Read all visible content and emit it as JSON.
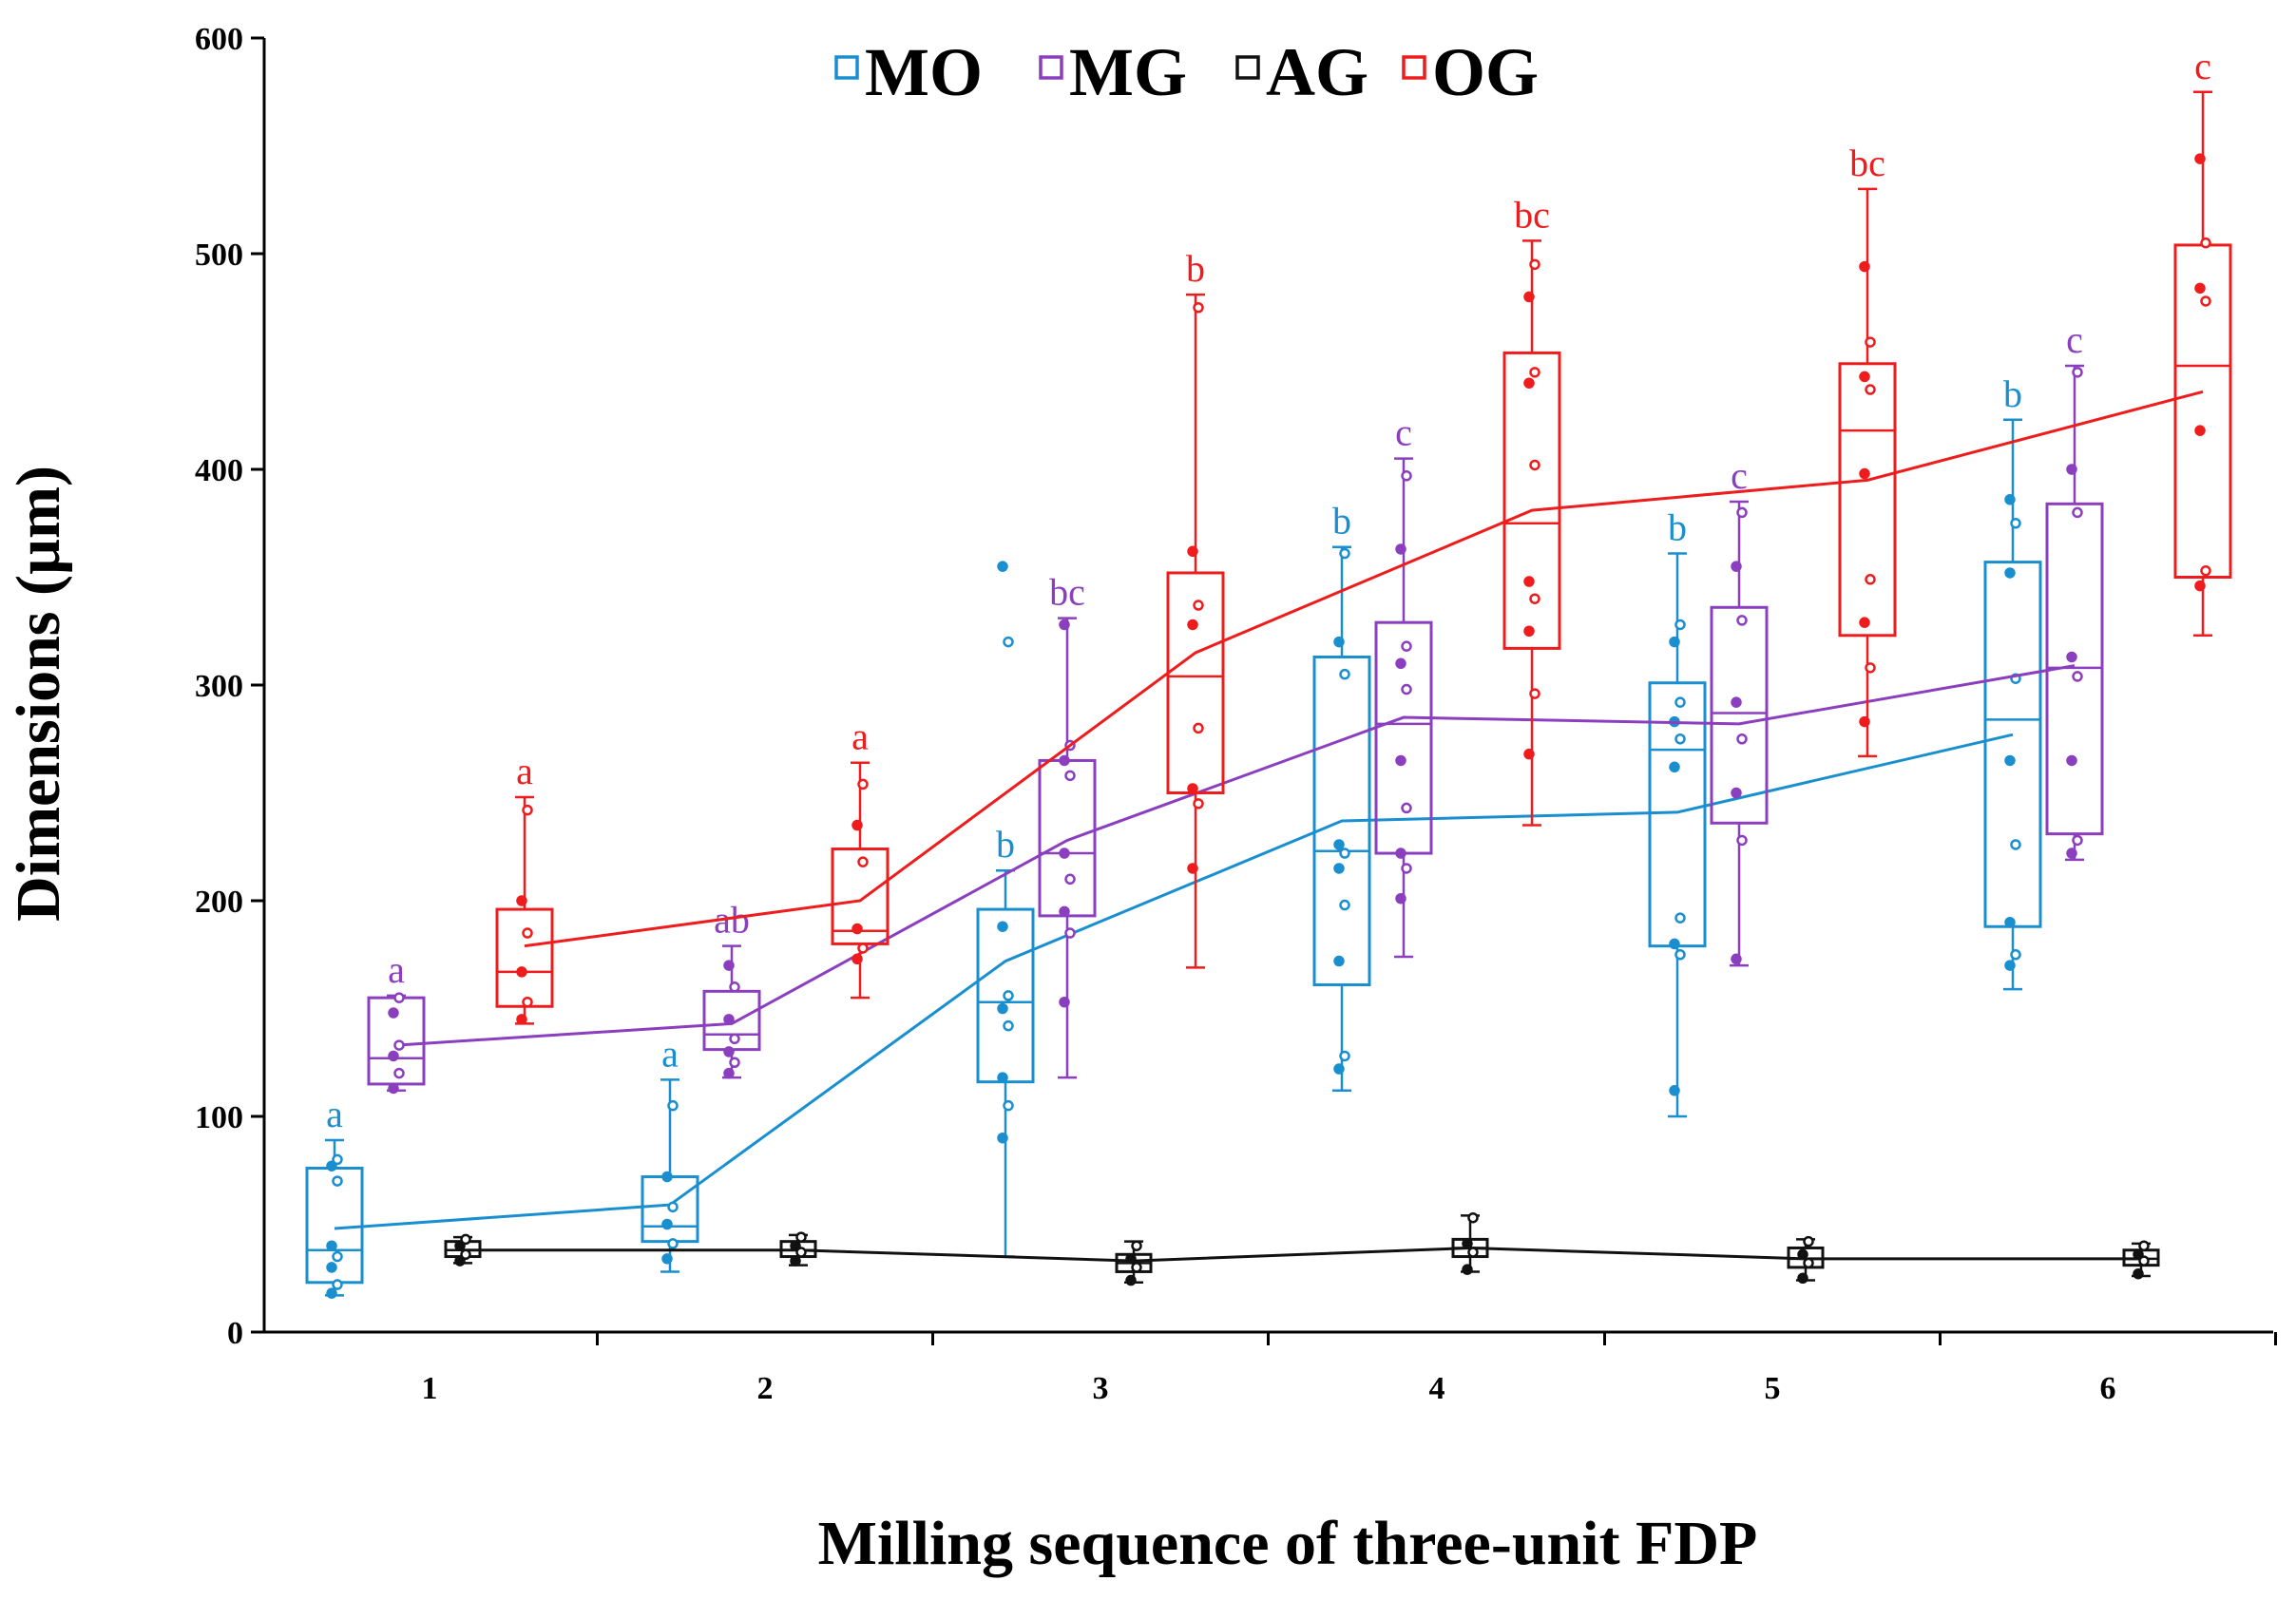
{
  "chart_data": {
    "type": "box",
    "xlabel": "Milling sequence of three-unit FDP",
    "ylabel": "Dimensions (µm)",
    "categories": [
      "1",
      "2",
      "3",
      "4",
      "5",
      "6"
    ],
    "ylim": [
      0,
      600
    ],
    "yticks": [
      0,
      100,
      200,
      300,
      400,
      500,
      600
    ],
    "legend_position": "top-center",
    "series": [
      {
        "name": "MO",
        "color": "#1a8fd0",
        "means": [
          48,
          59,
          172,
          237,
          241,
          277
        ],
        "boxes": [
          {
            "min": 17,
            "q1": 23,
            "median": 38,
            "q3": 76,
            "max": 89,
            "label": "a",
            "points": [
              18,
              22,
              30,
              35,
              40,
              70,
              77,
              80
            ]
          },
          {
            "min": 28,
            "q1": 42,
            "median": 49,
            "q3": 72,
            "max": 117,
            "label": "a",
            "points": [
              34,
              41,
              50,
              58,
              72,
              105
            ]
          },
          {
            "min": 35,
            "q1": 116,
            "median": 153,
            "q3": 196,
            "max": 214,
            "label": "b",
            "points": [
              90,
              105,
              118,
              142,
              150,
              156,
              188,
              320,
              355
            ]
          },
          {
            "min": 112,
            "q1": 161,
            "median": 223,
            "q3": 313,
            "max": 364,
            "label": "b",
            "points": [
              122,
              128,
              172,
              198,
              215,
              222,
              226,
              305,
              320,
              361
            ]
          },
          {
            "min": 100,
            "q1": 179,
            "median": 270,
            "q3": 301,
            "max": 361,
            "label": "b",
            "points": [
              112,
              175,
              180,
              192,
              262,
              275,
              283,
              292,
              320,
              328
            ]
          },
          {
            "min": 159,
            "q1": 188,
            "median": 284,
            "q3": 357,
            "max": 423,
            "label": "b",
            "points": [
              170,
              175,
              190,
              226,
              265,
              303,
              352,
              375,
              386
            ]
          }
        ]
      },
      {
        "name": "MG",
        "color": "#8b3fbf",
        "means": [
          133,
          143,
          228,
          285,
          282,
          309
        ],
        "boxes": [
          {
            "min": 112,
            "q1": 115,
            "median": 127,
            "q3": 155,
            "max": 156,
            "label": "a",
            "points": [
              113,
              120,
              128,
              133,
              148,
              155
            ]
          },
          {
            "min": 118,
            "q1": 131,
            "median": 138,
            "q3": 158,
            "max": 179,
            "label": "ab",
            "points": [
              120,
              125,
              130,
              136,
              145,
              160,
              170
            ]
          },
          {
            "min": 118,
            "q1": 193,
            "median": 222,
            "q3": 265,
            "max": 331,
            "label": "bc",
            "points": [
              153,
              185,
              195,
              210,
              222,
              258,
              265,
              272,
              328
            ]
          },
          {
            "min": 174,
            "q1": 222,
            "median": 282,
            "q3": 329,
            "max": 405,
            "label": "c",
            "points": [
              201,
              215,
              222,
              243,
              265,
              298,
              310,
              318,
              363,
              397
            ]
          },
          {
            "min": 170,
            "q1": 236,
            "median": 287,
            "q3": 336,
            "max": 385,
            "label": "c",
            "points": [
              173,
              228,
              250,
              275,
              292,
              330,
              355,
              380
            ]
          },
          {
            "min": 219,
            "q1": 231,
            "median": 308,
            "q3": 384,
            "max": 448,
            "label": "c",
            "points": [
              222,
              228,
              265,
              304,
              313,
              380,
              400,
              445
            ]
          }
        ]
      },
      {
        "name": "AG",
        "color": "#111111",
        "means": [
          38,
          38,
          33,
          39,
          34,
          34
        ],
        "boxes": [
          {
            "min": 32,
            "q1": 35,
            "median": 38,
            "q3": 42,
            "max": 44,
            "label": "",
            "points": [
              33,
              36,
              40,
              43
            ]
          },
          {
            "min": 31,
            "q1": 35,
            "median": 38,
            "q3": 42,
            "max": 45,
            "label": "",
            "points": [
              33,
              37,
              40,
              44
            ]
          },
          {
            "min": 23,
            "q1": 28,
            "median": 32,
            "q3": 36,
            "max": 42,
            "label": "",
            "points": [
              24,
              30,
              34,
              40
            ]
          },
          {
            "min": 28,
            "q1": 35,
            "median": 39,
            "q3": 43,
            "max": 54,
            "label": "",
            "points": [
              29,
              37,
              41,
              53
            ]
          },
          {
            "min": 24,
            "q1": 30,
            "median": 34,
            "q3": 39,
            "max": 43,
            "label": "",
            "points": [
              25,
              32,
              36,
              42
            ]
          },
          {
            "min": 26,
            "q1": 31,
            "median": 34,
            "q3": 38,
            "max": 41,
            "label": "",
            "points": [
              27,
              33,
              36,
              40
            ]
          }
        ]
      },
      {
        "name": "OG",
        "color": "#ee1c1c",
        "means": [
          179,
          200,
          315,
          381,
          395,
          436
        ],
        "boxes": [
          {
            "min": 143,
            "q1": 151,
            "median": 167,
            "q3": 196,
            "max": 248,
            "label": "a",
            "points": [
              145,
              153,
              167,
              185,
              200,
              242
            ]
          },
          {
            "min": 155,
            "q1": 180,
            "median": 186,
            "q3": 224,
            "max": 264,
            "label": "a",
            "points": [
              173,
              178,
              187,
              218,
              235,
              254
            ]
          },
          {
            "min": 169,
            "q1": 250,
            "median": 304,
            "q3": 352,
            "max": 481,
            "label": "b",
            "points": [
              215,
              245,
              252,
              280,
              328,
              337,
              362,
              475
            ]
          },
          {
            "min": 235,
            "q1": 317,
            "median": 375,
            "q3": 454,
            "max": 506,
            "label": "bc",
            "points": [
              268,
              296,
              325,
              340,
              348,
              402,
              440,
              445,
              480,
              495
            ]
          },
          {
            "min": 267,
            "q1": 323,
            "median": 418,
            "q3": 449,
            "max": 530,
            "label": "bc",
            "points": [
              283,
              308,
              329,
              349,
              398,
              437,
              443,
              459,
              494
            ]
          },
          {
            "min": 323,
            "q1": 350,
            "median": 448,
            "q3": 504,
            "max": 575,
            "label": "c",
            "points": [
              346,
              353,
              418,
              478,
              484,
              505,
              544
            ]
          }
        ]
      }
    ]
  }
}
